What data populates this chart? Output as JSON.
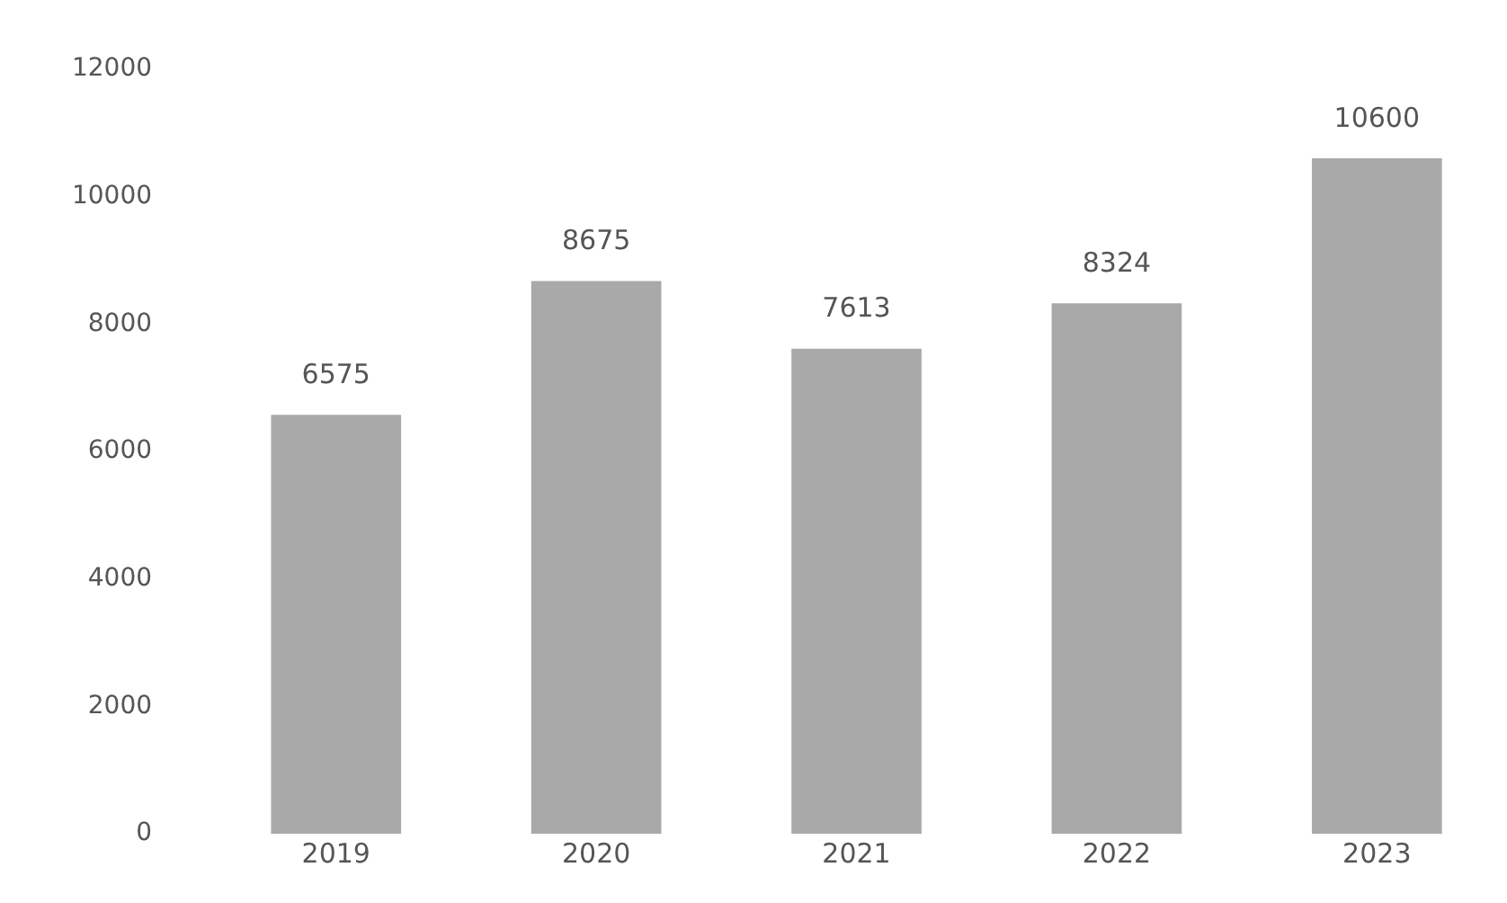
{
  "chart_data": {
    "type": "bar",
    "categories": [
      "2019",
      "2020",
      "2021",
      "2022",
      "2023"
    ],
    "values": [
      6575,
      8675,
      7613,
      8324,
      10600
    ],
    "color": "#a9a9a9",
    "ylim": [
      0,
      12000
    ],
    "yticks": [
      0,
      2000,
      4000,
      6000,
      8000,
      10000,
      12000
    ],
    "grid": false,
    "data_labels": true
  }
}
